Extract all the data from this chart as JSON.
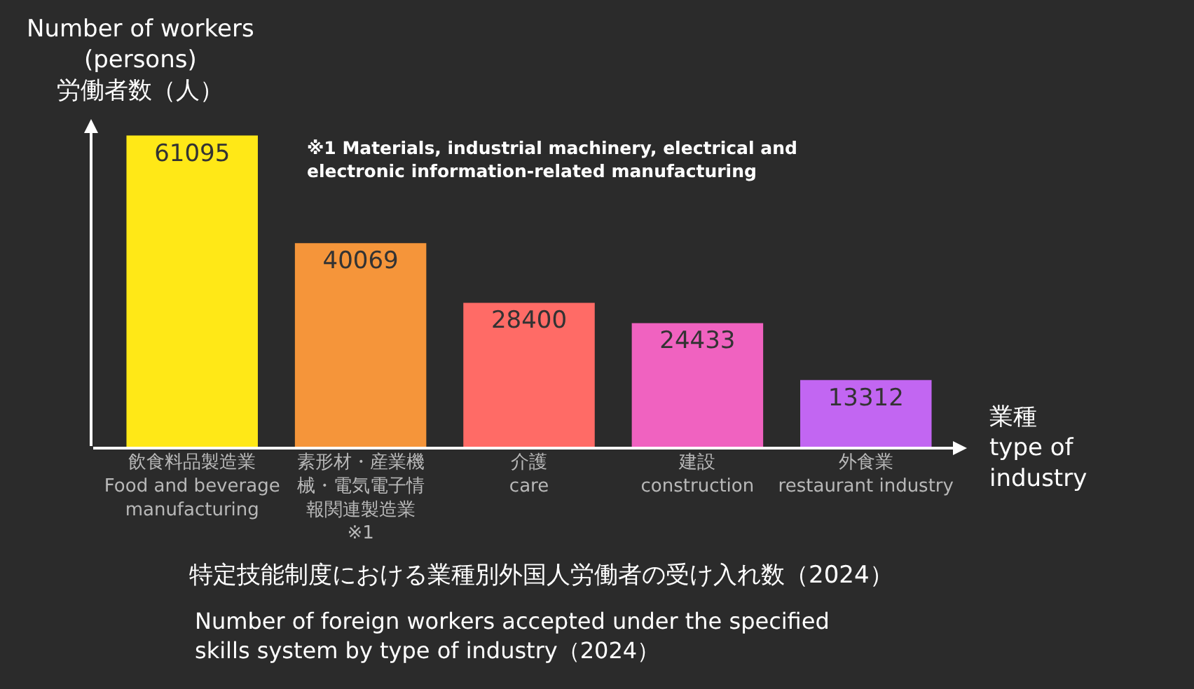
{
  "chart_data": {
    "type": "bar",
    "title": "特定技能制度における業種別外国人労働者の受け入れ数（2024）",
    "subtitle": "Number of foreign workers accepted under the specified\nskills system by type of industry（2024）",
    "ylabel": "Number of workers\n(persons)\n労働者数（人）",
    "xlabel": "業種\ntype of\nindustry",
    "categories": [
      "飲食料品製造業\nFood and beverage\nmanufacturing",
      "素形材・産業機械・電気電子情報関連製造業\n※1",
      "介護\ncare",
      "建設\nconstruction",
      "外食業\nrestaurant industry"
    ],
    "values": [
      61095,
      40069,
      28400,
      24433,
      13312
    ],
    "colors": [
      "#ffe817",
      "#f5953a",
      "#ff6b66",
      "#f062c0",
      "#c266f2"
    ],
    "data_labels": true,
    "annotations": [
      "※1 Materials, industrial machinery, electrical and\nelectronic information-related manufacturing"
    ],
    "grid": false,
    "legend": false
  }
}
